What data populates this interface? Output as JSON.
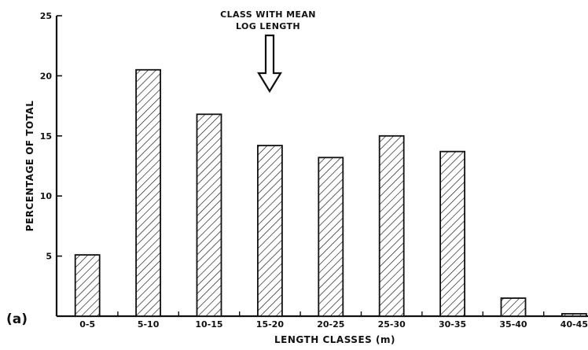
{
  "panel_label": "(a)",
  "annotation": {
    "line1": "CLASS WITH MEAN",
    "line2": "LOG LENGTH",
    "target_category": "15-20"
  },
  "colors": {
    "ink": "#111111",
    "background": "#ffffff"
  },
  "chart_data": {
    "type": "bar",
    "categories": [
      "0-5",
      "5-10",
      "10-15",
      "15-20",
      "20-25",
      "25-30",
      "30-35",
      "35-40",
      "40-45"
    ],
    "values": [
      5.1,
      20.5,
      16.8,
      14.2,
      13.2,
      15.0,
      13.7,
      1.5,
      0.2
    ],
    "title": "",
    "xlabel": "LENGTH CLASSES (m)",
    "ylabel": "PERCENTAGE OF TOTAL",
    "ylim": [
      0,
      25
    ],
    "yticks": [
      5,
      10,
      15,
      20,
      25
    ],
    "grid": false,
    "fill": "diagonal hatching"
  }
}
